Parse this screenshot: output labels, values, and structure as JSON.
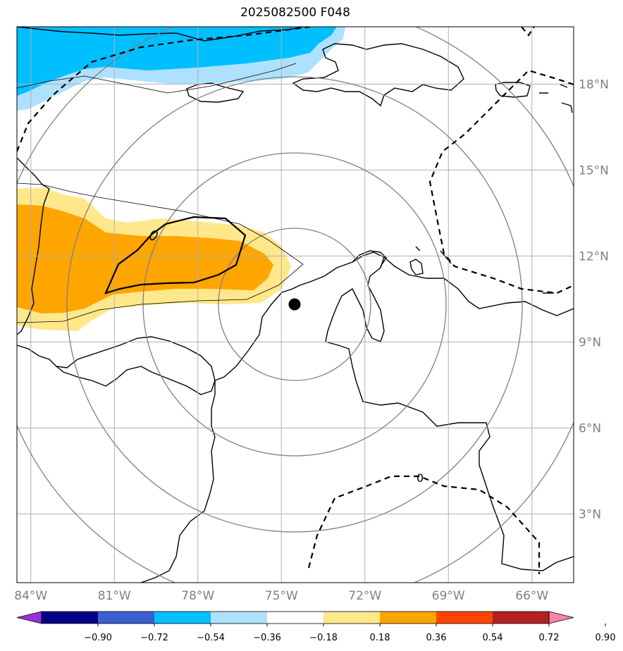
{
  "title": "2025082500 F048",
  "map": {
    "lon_range": [
      -84.5,
      -64.5
    ],
    "lat_range": [
      0.6,
      20.0
    ],
    "lon_ticks": [
      {
        "value": -84,
        "label": "84°W"
      },
      {
        "value": -81,
        "label": "81°W"
      },
      {
        "value": -78,
        "label": "78°W"
      },
      {
        "value": -75,
        "label": "75°W"
      },
      {
        "value": -72,
        "label": "72°W"
      },
      {
        "value": -69,
        "label": "69°W"
      },
      {
        "value": -66,
        "label": "66°W"
      }
    ],
    "lat_ticks": [
      {
        "value": 18,
        "label": "18°N"
      },
      {
        "value": 15,
        "label": "15°N"
      },
      {
        "value": 12,
        "label": "12°N"
      },
      {
        "value": 9,
        "label": "9°N"
      },
      {
        "value": 6,
        "label": "6°N"
      },
      {
        "value": 3,
        "label": "3°N"
      }
    ],
    "center_marker": {
      "lon": -74.5,
      "lat": 10.5
    },
    "contour_zero_label": "0",
    "colors": {
      "land_line": "#000000",
      "grid": "#b0b0b0",
      "range_rings": "#808080"
    }
  },
  "colorbar": {
    "colors": [
      "#9b30d9",
      "#00008b",
      "#3a5fcd",
      "#00bfff",
      "#aee1ff",
      "#ffffff",
      "#ffe88c",
      "#ffa500",
      "#ff4500",
      "#b22222",
      "#ff82ab"
    ],
    "labels": [
      "−0.90",
      "−0.72",
      "−0.54",
      "−0.36",
      "−0.18",
      "0.18",
      "0.36",
      "0.54",
      "0.72",
      "0.90"
    ]
  }
}
